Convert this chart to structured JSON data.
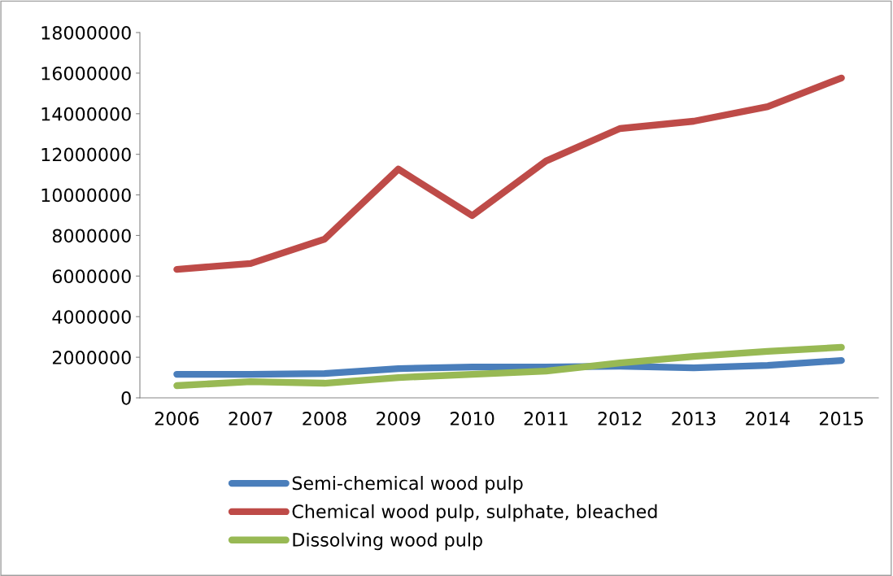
{
  "chart_data": {
    "type": "line",
    "categories": [
      "2006",
      "2007",
      "2008",
      "2009",
      "2010",
      "2011",
      "2012",
      "2013",
      "2014",
      "2015"
    ],
    "series": [
      {
        "name": "Semi-chemical wood pulp",
        "color": "#4a7ebb",
        "values": [
          1160000,
          1160000,
          1200000,
          1440000,
          1520000,
          1520000,
          1560000,
          1480000,
          1600000,
          1840000
        ]
      },
      {
        "name": "Chemical wood pulp, sulphate, bleached",
        "color": "#be4b48",
        "values": [
          6330000,
          6620000,
          7820000,
          11270000,
          8980000,
          11670000,
          13270000,
          13630000,
          14350000,
          15760000
        ]
      },
      {
        "name": "Dissolving wood pulp",
        "color": "#98b954",
        "values": [
          600000,
          800000,
          720000,
          1000000,
          1160000,
          1320000,
          1720000,
          2040000,
          2290000,
          2490000
        ]
      }
    ],
    "ylim": [
      0,
      18000000
    ],
    "yticks": [
      0,
      2000000,
      4000000,
      6000000,
      8000000,
      10000000,
      12000000,
      14000000,
      16000000,
      18000000
    ],
    "grid": false,
    "legend": "bottom",
    "marker": "none",
    "line_style": "solid"
  }
}
